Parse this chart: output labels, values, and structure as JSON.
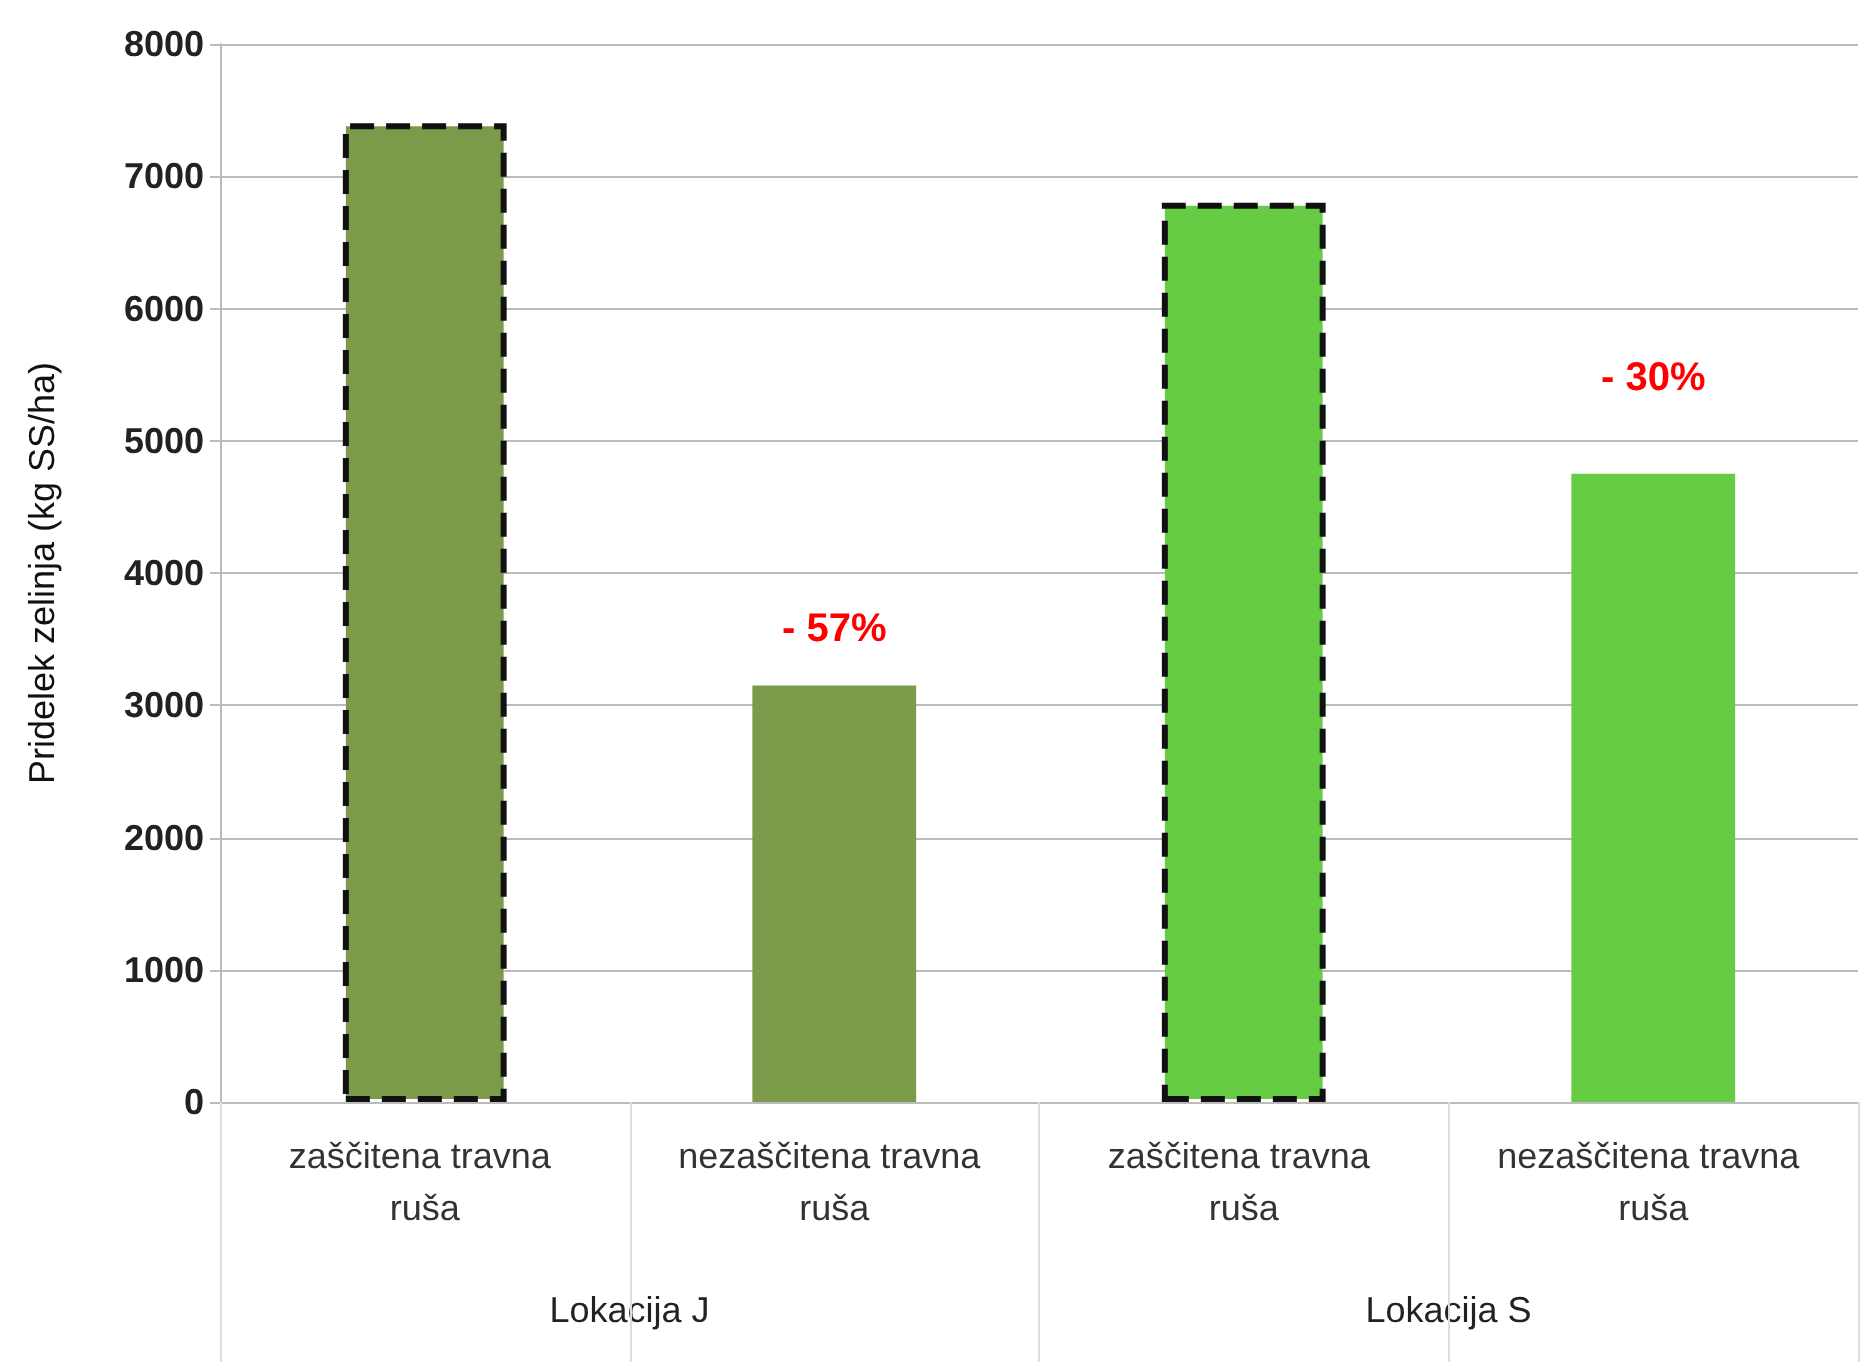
{
  "chart_data": {
    "type": "bar",
    "ylabel": "Pridelek zelinja (kg SS/ha)",
    "categories": [
      "zaščitena travna ruša",
      "nezaščitena travna ruša",
      "zaščitena travna ruša",
      "nezaščitena travna ruša"
    ],
    "stacked": true,
    "series": [
      {
        "colors": [
          "#7b9b4b",
          "#7b9b4b",
          "#66cc44",
          "#66cc44"
        ],
        "line_style": "dashed",
        "values": [
          7400,
          null,
          6800,
          null
        ]
      },
      {
        "colors": [
          "#7b9b4b",
          "#7b9b4b",
          "#66cc44",
          "#66cc44"
        ],
        "values": [
          null,
          3150,
          null,
          4750
        ]
      }
    ],
    "annotations": [
      "Lokacija J",
      "Lokacija S",
      "- 57%",
      "- 30%"
    ],
    "ylim": [
      0,
      8000
    ],
    "yticks": [
      0,
      1000,
      2000,
      3000,
      4000,
      5000,
      6000,
      7000,
      8000
    ],
    "grid": "y"
  }
}
